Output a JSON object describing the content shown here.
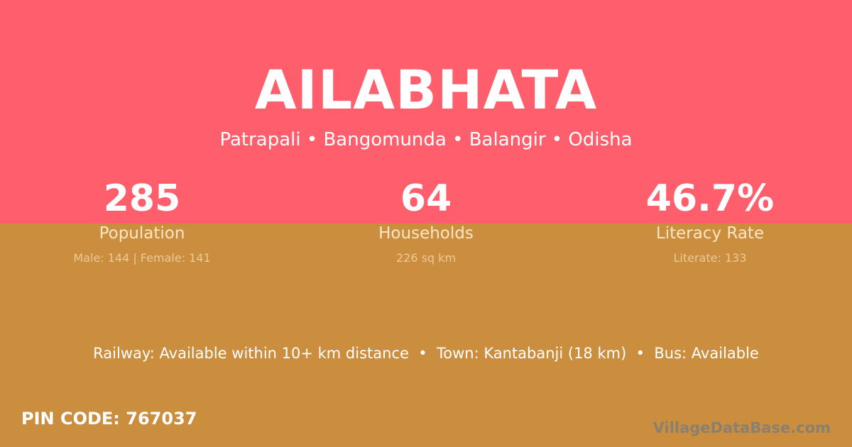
{
  "colors": {
    "top_band": "#FF5F6D",
    "bottom_band": "#CB8E3E"
  },
  "village": {
    "name": "AILABHATA",
    "location": "Patrapali • Bangomunda • Balangir • Odisha"
  },
  "stats": [
    {
      "value": "285",
      "label": "Population",
      "detail": "Male: 144 | Female: 141"
    },
    {
      "value": "64",
      "label": "Households",
      "detail": "226 sq km"
    },
    {
      "value": "46.7%",
      "label": "Literacy Rate",
      "detail": "Literate: 133"
    }
  ],
  "amenities": "Railway: Available within 10+ km distance  •  Town: Kantabanji (18 km)  •  Bus: Available",
  "pin_code": "PIN CODE: 767037",
  "watermark": "VillageDataBase.com"
}
